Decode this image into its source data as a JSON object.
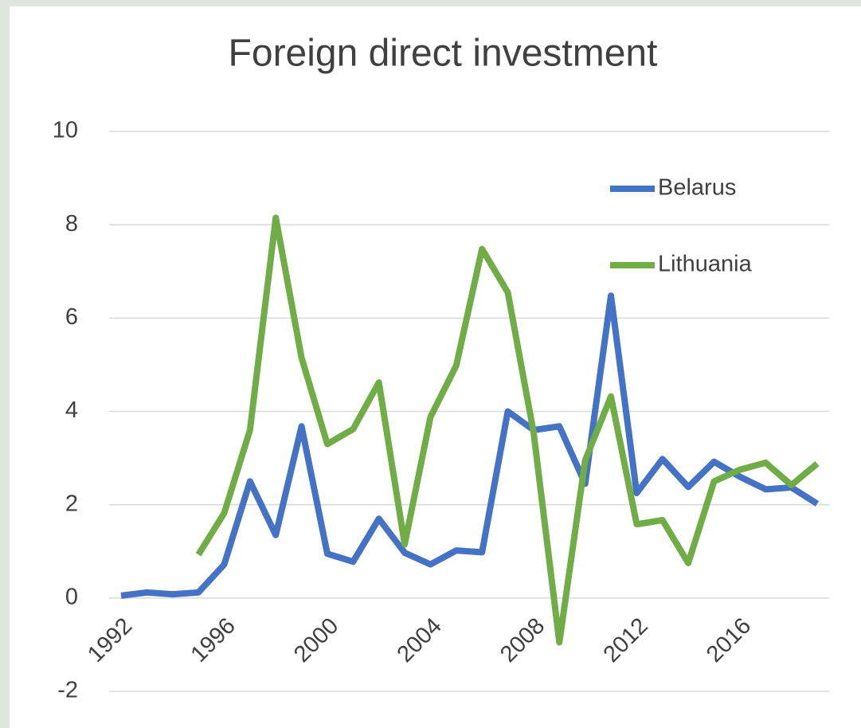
{
  "chart_data": {
    "type": "line",
    "title": "Foreign direct investment",
    "x": [
      1992,
      1993,
      1994,
      1995,
      1996,
      1997,
      1998,
      1999,
      2000,
      2001,
      2002,
      2003,
      2004,
      2005,
      2006,
      2007,
      2008,
      2009,
      2010,
      2011,
      2012,
      2013,
      2014,
      2015,
      2016,
      2017,
      2018,
      2019
    ],
    "series": [
      {
        "name": "Belarus",
        "color": "#4472c4",
        "values": [
          0.05,
          0.12,
          0.08,
          0.12,
          0.72,
          2.5,
          1.35,
          3.68,
          0.95,
          0.78,
          1.7,
          0.97,
          0.72,
          1.02,
          0.98,
          4.0,
          3.6,
          3.68,
          2.45,
          6.48,
          2.25,
          2.98,
          2.38,
          2.92,
          2.6,
          2.33,
          2.37,
          2.02
        ]
      },
      {
        "name": "Lithuania",
        "color": "#70ad47",
        "values": [
          null,
          null,
          null,
          0.93,
          1.82,
          3.6,
          8.15,
          5.15,
          3.3,
          3.62,
          4.62,
          1.15,
          3.88,
          4.98,
          7.48,
          6.55,
          3.55,
          -0.95,
          2.95,
          4.32,
          1.58,
          1.67,
          0.75,
          2.5,
          2.75,
          2.9,
          2.42,
          2.88
        ]
      }
    ],
    "xlim": [
      1992,
      2019
    ],
    "xticks": [
      1992,
      1996,
      2000,
      2004,
      2008,
      2012,
      2016
    ],
    "ylim": [
      -2,
      10
    ],
    "yticks": [
      -2,
      0,
      2,
      4,
      6,
      8,
      10
    ],
    "grid": true,
    "legend": "upper right"
  }
}
